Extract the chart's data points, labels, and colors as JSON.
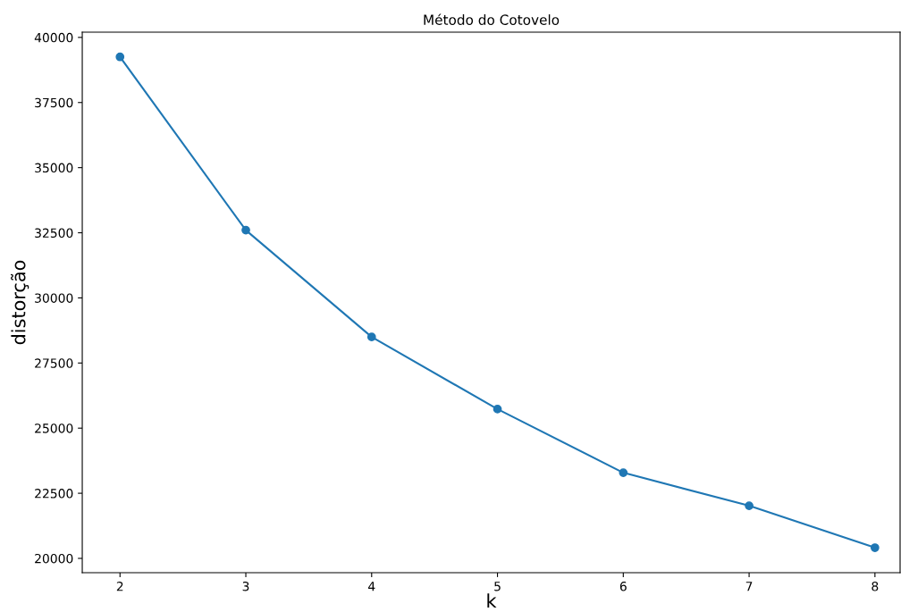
{
  "chart_data": {
    "type": "line",
    "title": "Método do Cotovelo",
    "xlabel": "k",
    "ylabel": "distorção",
    "x": [
      2,
      3,
      4,
      5,
      6,
      7,
      8
    ],
    "series": [
      {
        "color": "#1f77b4",
        "values": [
          39250,
          32600,
          28500,
          25730,
          23290,
          22020,
          20410
        ]
      }
    ],
    "xlim": [
      1.7,
      8.2
    ],
    "xticks": [
      2,
      3,
      4,
      5,
      6,
      7,
      8
    ],
    "ylim": [
      19450,
      40200
    ],
    "yticks": [
      20000,
      22500,
      25000,
      27500,
      30000,
      32500,
      35000,
      37500,
      40000
    ],
    "marker": "circle",
    "line_style": "solid",
    "grid": false
  }
}
